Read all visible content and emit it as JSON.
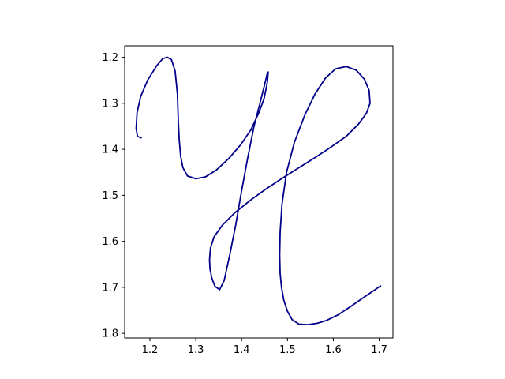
{
  "chart_data": {
    "type": "line",
    "title": "",
    "xlabel": "",
    "ylabel": "",
    "xlim": [
      1.145,
      1.73
    ],
    "ylim": [
      1.81,
      1.175
    ],
    "y_inverted": true,
    "grid": false,
    "x_ticks": [
      1.2,
      1.3,
      1.4,
      1.5,
      1.6,
      1.7
    ],
    "y_ticks": [
      1.2,
      1.3,
      1.4,
      1.5,
      1.6,
      1.7,
      1.8
    ],
    "x_tick_labels": [
      "1.2",
      "1.3",
      "1.4",
      "1.5",
      "1.6",
      "1.7"
    ],
    "y_tick_labels": [
      "1.2",
      "1.3",
      "1.4",
      "1.5",
      "1.6",
      "1.7",
      "1.8"
    ],
    "series": [
      {
        "color": "#00008b",
        "x": [
          1.181,
          1.173,
          1.17,
          1.172,
          1.18,
          1.195,
          1.215,
          1.228,
          1.238,
          1.247,
          1.255,
          1.26,
          1.262,
          1.264,
          1.267,
          1.272,
          1.282,
          1.3,
          1.321,
          1.345,
          1.372,
          1.398,
          1.42,
          1.437,
          1.449,
          1.456,
          1.458,
          1.456,
          1.45,
          1.44,
          1.427,
          1.413,
          1.4,
          1.387,
          1.374,
          1.362,
          1.352,
          1.342,
          1.335,
          1.331,
          1.33,
          1.332,
          1.34,
          1.358,
          1.385,
          1.42,
          1.455,
          1.49,
          1.525,
          1.56,
          1.595,
          1.628,
          1.655,
          1.672,
          1.68,
          1.678,
          1.668,
          1.65,
          1.628,
          1.605,
          1.583,
          1.56,
          1.538,
          1.515,
          1.498,
          1.488,
          1.484,
          1.483,
          1.484,
          1.487,
          1.492,
          1.5,
          1.51,
          1.525,
          1.545,
          1.565,
          1.585,
          1.61,
          1.64,
          1.672,
          1.703
        ],
        "y": [
          1.375,
          1.372,
          1.355,
          1.32,
          1.285,
          1.25,
          1.218,
          1.203,
          1.2,
          1.205,
          1.23,
          1.28,
          1.34,
          1.38,
          1.415,
          1.44,
          1.458,
          1.464,
          1.46,
          1.445,
          1.42,
          1.39,
          1.358,
          1.322,
          1.29,
          1.255,
          1.232,
          1.235,
          1.26,
          1.3,
          1.35,
          1.42,
          1.49,
          1.565,
          1.63,
          1.685,
          1.705,
          1.698,
          1.68,
          1.66,
          1.64,
          1.615,
          1.59,
          1.565,
          1.538,
          1.51,
          1.485,
          1.462,
          1.44,
          1.418,
          1.395,
          1.372,
          1.345,
          1.322,
          1.3,
          1.272,
          1.248,
          1.228,
          1.22,
          1.225,
          1.245,
          1.28,
          1.325,
          1.385,
          1.45,
          1.52,
          1.58,
          1.63,
          1.67,
          1.7,
          1.728,
          1.752,
          1.77,
          1.78,
          1.781,
          1.778,
          1.772,
          1.76,
          1.74,
          1.718,
          1.697
        ]
      }
    ]
  }
}
